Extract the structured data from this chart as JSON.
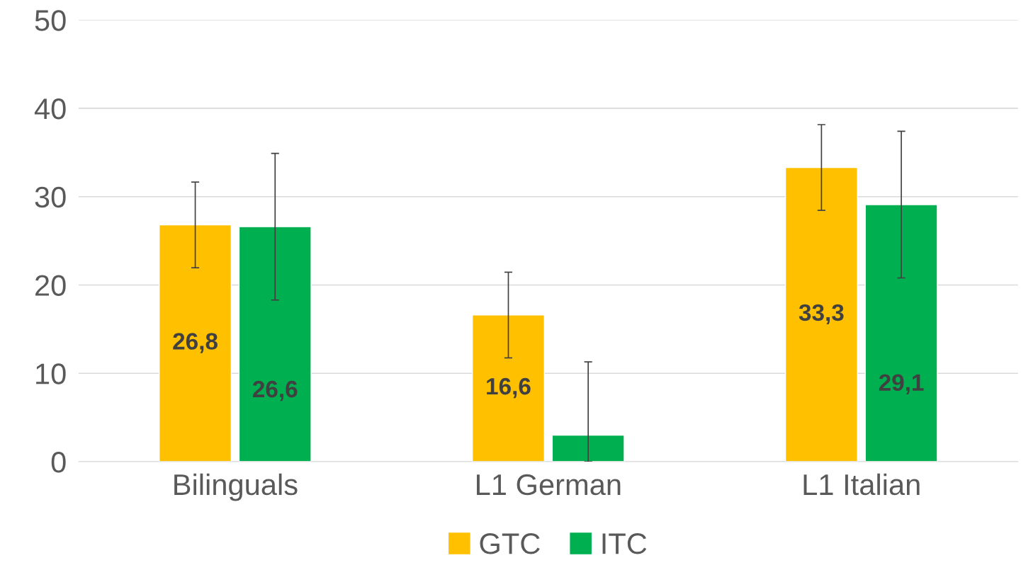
{
  "chart_data": {
    "type": "bar",
    "categories": [
      "Bilinguals",
      "L1 German",
      "L1 Italian"
    ],
    "series": [
      {
        "name": "GTC",
        "color": "#ffc000",
        "values": [
          26.8,
          16.6,
          33.3
        ],
        "errors": [
          4.85,
          4.85,
          4.85
        ],
        "value_labels": [
          "26,8",
          "16,6",
          "33,3"
        ]
      },
      {
        "name": "ITC",
        "color": "#00b050",
        "values": [
          26.6,
          3.0,
          29.1
        ],
        "errors": [
          8.3,
          [
            0,
            11.3
          ],
          8.3
        ],
        "value_labels": [
          "26,6",
          null,
          "29,1"
        ]
      }
    ],
    "ylim": [
      0,
      50
    ],
    "yticks": [
      0,
      10,
      20,
      30,
      40,
      50
    ],
    "grid": "y",
    "legend": "bottom"
  }
}
